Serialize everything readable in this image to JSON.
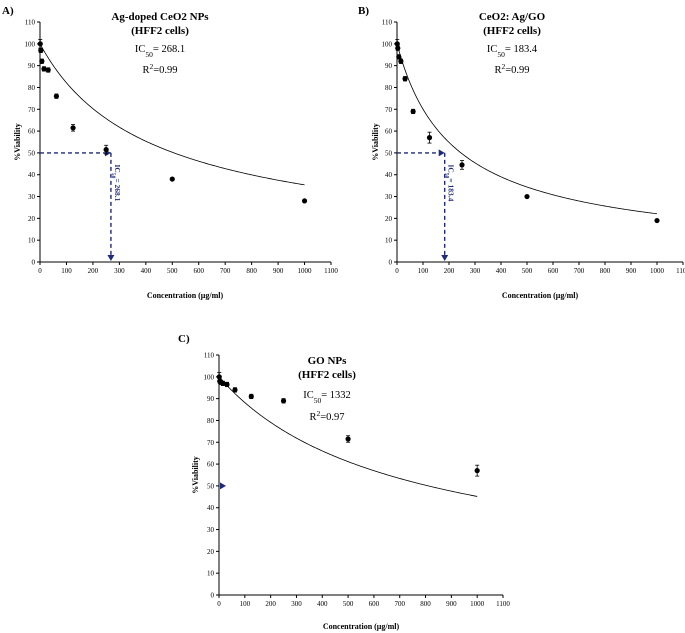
{
  "colors": {
    "marker": "#000000",
    "dash": "#1f2a78"
  },
  "chart_data": [
    {
      "id": "A",
      "panel_label": "A)",
      "type": "scatter",
      "title": "Ag-doped CeO2 NPs",
      "subtitle": "(HFF2 cells)",
      "ic50_prefix": "IC",
      "ic50_sub": "50",
      "ic50_value": "= 268.1",
      "r2_prefix": "R",
      "r2_sup": "2",
      "r2_value": "=0.99",
      "ic50_rotated": "IC",
      "ic50_rotated_sub": "50",
      "ic50_rotated_value": "= 268.1",
      "ic50_x": 268.1,
      "ic50_line": true,
      "xlabel": "Concentration (µg/ml)",
      "ylabel": "%Viability",
      "xlim": [
        0,
        1100
      ],
      "ylim": [
        0,
        110
      ],
      "xticks": [
        0,
        100,
        200,
        300,
        400,
        500,
        600,
        700,
        800,
        900,
        1000,
        1100
      ],
      "yticks": [
        0,
        10,
        20,
        30,
        40,
        50,
        60,
        70,
        80,
        90,
        100,
        110
      ],
      "points": [
        {
          "x": 1,
          "y": 100,
          "err": 2
        },
        {
          "x": 3,
          "y": 97,
          "err": 1
        },
        {
          "x": 7,
          "y": 92,
          "err": 1
        },
        {
          "x": 15,
          "y": 88.5,
          "err": 1
        },
        {
          "x": 31,
          "y": 88,
          "err": 1
        },
        {
          "x": 62,
          "y": 76,
          "err": 1
        },
        {
          "x": 125,
          "y": 61.5,
          "err": 1.5
        },
        {
          "x": 250,
          "y": 51.5,
          "err": 2
        },
        {
          "x": 500,
          "y": 38,
          "err": 0.5
        },
        {
          "x": 1000,
          "y": 28,
          "err": 0.5
        }
      ],
      "fit": {
        "a": 100,
        "b": 0.003,
        "p": 0.75
      }
    },
    {
      "id": "B",
      "panel_label": "B)",
      "type": "scatter",
      "title": "CeO2: Ag/GO",
      "subtitle": "(HFF2 cells)",
      "ic50_prefix": "IC",
      "ic50_sub": "50",
      "ic50_value": "= 183.4",
      "r2_prefix": "R",
      "r2_sup": "2",
      "r2_value": "=0.99",
      "ic50_rotated": "IC",
      "ic50_rotated_sub": "50",
      "ic50_rotated_value": "= 183.4",
      "ic50_x": 183.4,
      "ic50_line": true,
      "xlabel": "Concentration (µg/ml)",
      "ylabel": "%Viability",
      "xlim": [
        0,
        1100
      ],
      "ylim": [
        0,
        110
      ],
      "xticks": [
        0,
        100,
        200,
        300,
        400,
        500,
        600,
        700,
        800,
        900,
        1000,
        1100
      ],
      "yticks": [
        0,
        10,
        20,
        30,
        40,
        50,
        60,
        70,
        80,
        90,
        100,
        110
      ],
      "points": [
        {
          "x": 1,
          "y": 100,
          "err": 2
        },
        {
          "x": 3,
          "y": 98,
          "err": 1
        },
        {
          "x": 7,
          "y": 94,
          "err": 1
        },
        {
          "x": 15,
          "y": 92,
          "err": 1
        },
        {
          "x": 31,
          "y": 84,
          "err": 1
        },
        {
          "x": 62,
          "y": 69,
          "err": 1
        },
        {
          "x": 125,
          "y": 57,
          "err": 2.5
        },
        {
          "x": 250,
          "y": 44.5,
          "err": 2
        },
        {
          "x": 500,
          "y": 30,
          "err": 0.5
        },
        {
          "x": 1000,
          "y": 19,
          "err": 0.5
        }
      ],
      "fit": {
        "a": 100,
        "b": 0.0056,
        "p": 0.8
      }
    },
    {
      "id": "C",
      "panel_label": "C)",
      "type": "scatter",
      "title": "GO NPs",
      "subtitle": "(HFF2 cells)",
      "ic50_prefix": "IC",
      "ic50_sub": "50",
      "ic50_value": "= 1332",
      "r2_prefix": "R",
      "r2_sup": "2",
      "r2_value": "=0.97",
      "ic50_line": false,
      "xlabel": "Concentration (µg/ml)",
      "ylabel": "%Viability",
      "xlim": [
        0,
        1100
      ],
      "ylim": [
        0,
        110
      ],
      "xticks": [
        0,
        100,
        200,
        300,
        400,
        500,
        600,
        700,
        800,
        900,
        1000,
        1100
      ],
      "yticks": [
        0,
        10,
        20,
        30,
        40,
        50,
        60,
        70,
        80,
        90,
        100,
        110
      ],
      "points": [
        {
          "x": 1,
          "y": 100,
          "err": 2
        },
        {
          "x": 3,
          "y": 98,
          "err": 1
        },
        {
          "x": 7,
          "y": 97.5,
          "err": 1
        },
        {
          "x": 15,
          "y": 97,
          "err": 1
        },
        {
          "x": 31,
          "y": 96.5,
          "err": 1
        },
        {
          "x": 62,
          "y": 94,
          "err": 1
        },
        {
          "x": 125,
          "y": 91,
          "err": 1
        },
        {
          "x": 250,
          "y": 89,
          "err": 1
        },
        {
          "x": 500,
          "y": 71.5,
          "err": 1.5
        },
        {
          "x": 1000,
          "y": 57,
          "err": 2.5
        }
      ],
      "fit": {
        "a": 100,
        "b": 0.0017,
        "p": 0.8
      }
    }
  ]
}
